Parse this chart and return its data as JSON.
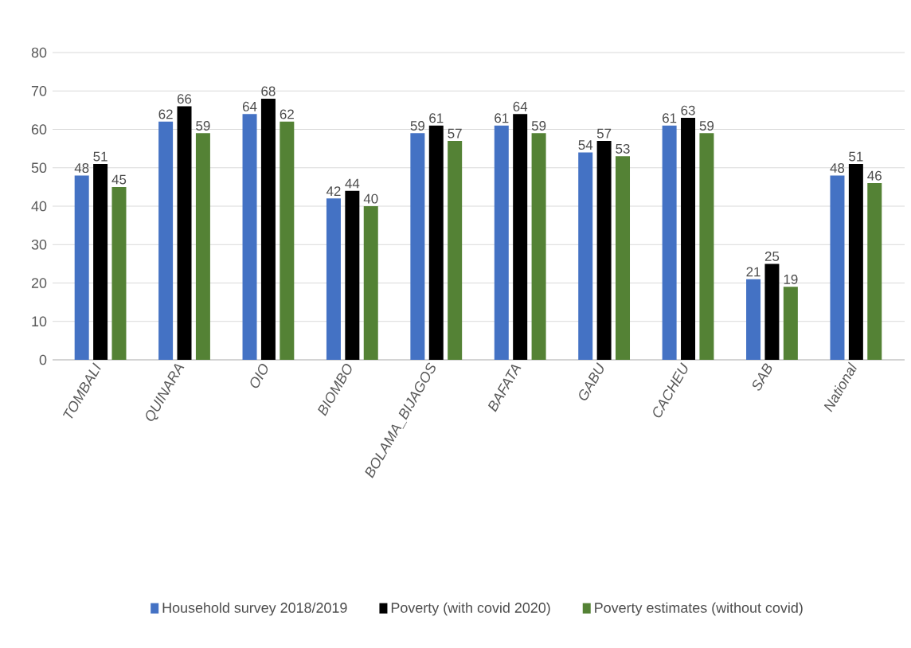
{
  "chart_data": {
    "type": "bar",
    "categories": [
      "TOMBALI",
      "QUINARA",
      "OIO",
      "BIOMBO",
      "BOLAMA_BIJAGOS",
      "BAFATA",
      "GABU",
      "CACHEU",
      "SAB",
      "National"
    ],
    "series": [
      {
        "name": "Household survey 2018/2019",
        "color": "#4472c4",
        "values": [
          48,
          62,
          64,
          42,
          59,
          61,
          54,
          61,
          21,
          48
        ]
      },
      {
        "name": "Poverty (with covid 2020)",
        "color": "#000000",
        "values": [
          51,
          66,
          68,
          44,
          61,
          64,
          57,
          63,
          25,
          51
        ]
      },
      {
        "name": "Poverty estimates (without covid)",
        "color": "#548235",
        "values": [
          45,
          59,
          62,
          40,
          57,
          59,
          53,
          59,
          19,
          46
        ]
      }
    ],
    "ylim": [
      0,
      80
    ],
    "yticks": [
      0,
      10,
      20,
      30,
      40,
      50,
      60,
      70,
      80
    ],
    "grid": "y",
    "legend": "bottom",
    "data_labels": true
  }
}
